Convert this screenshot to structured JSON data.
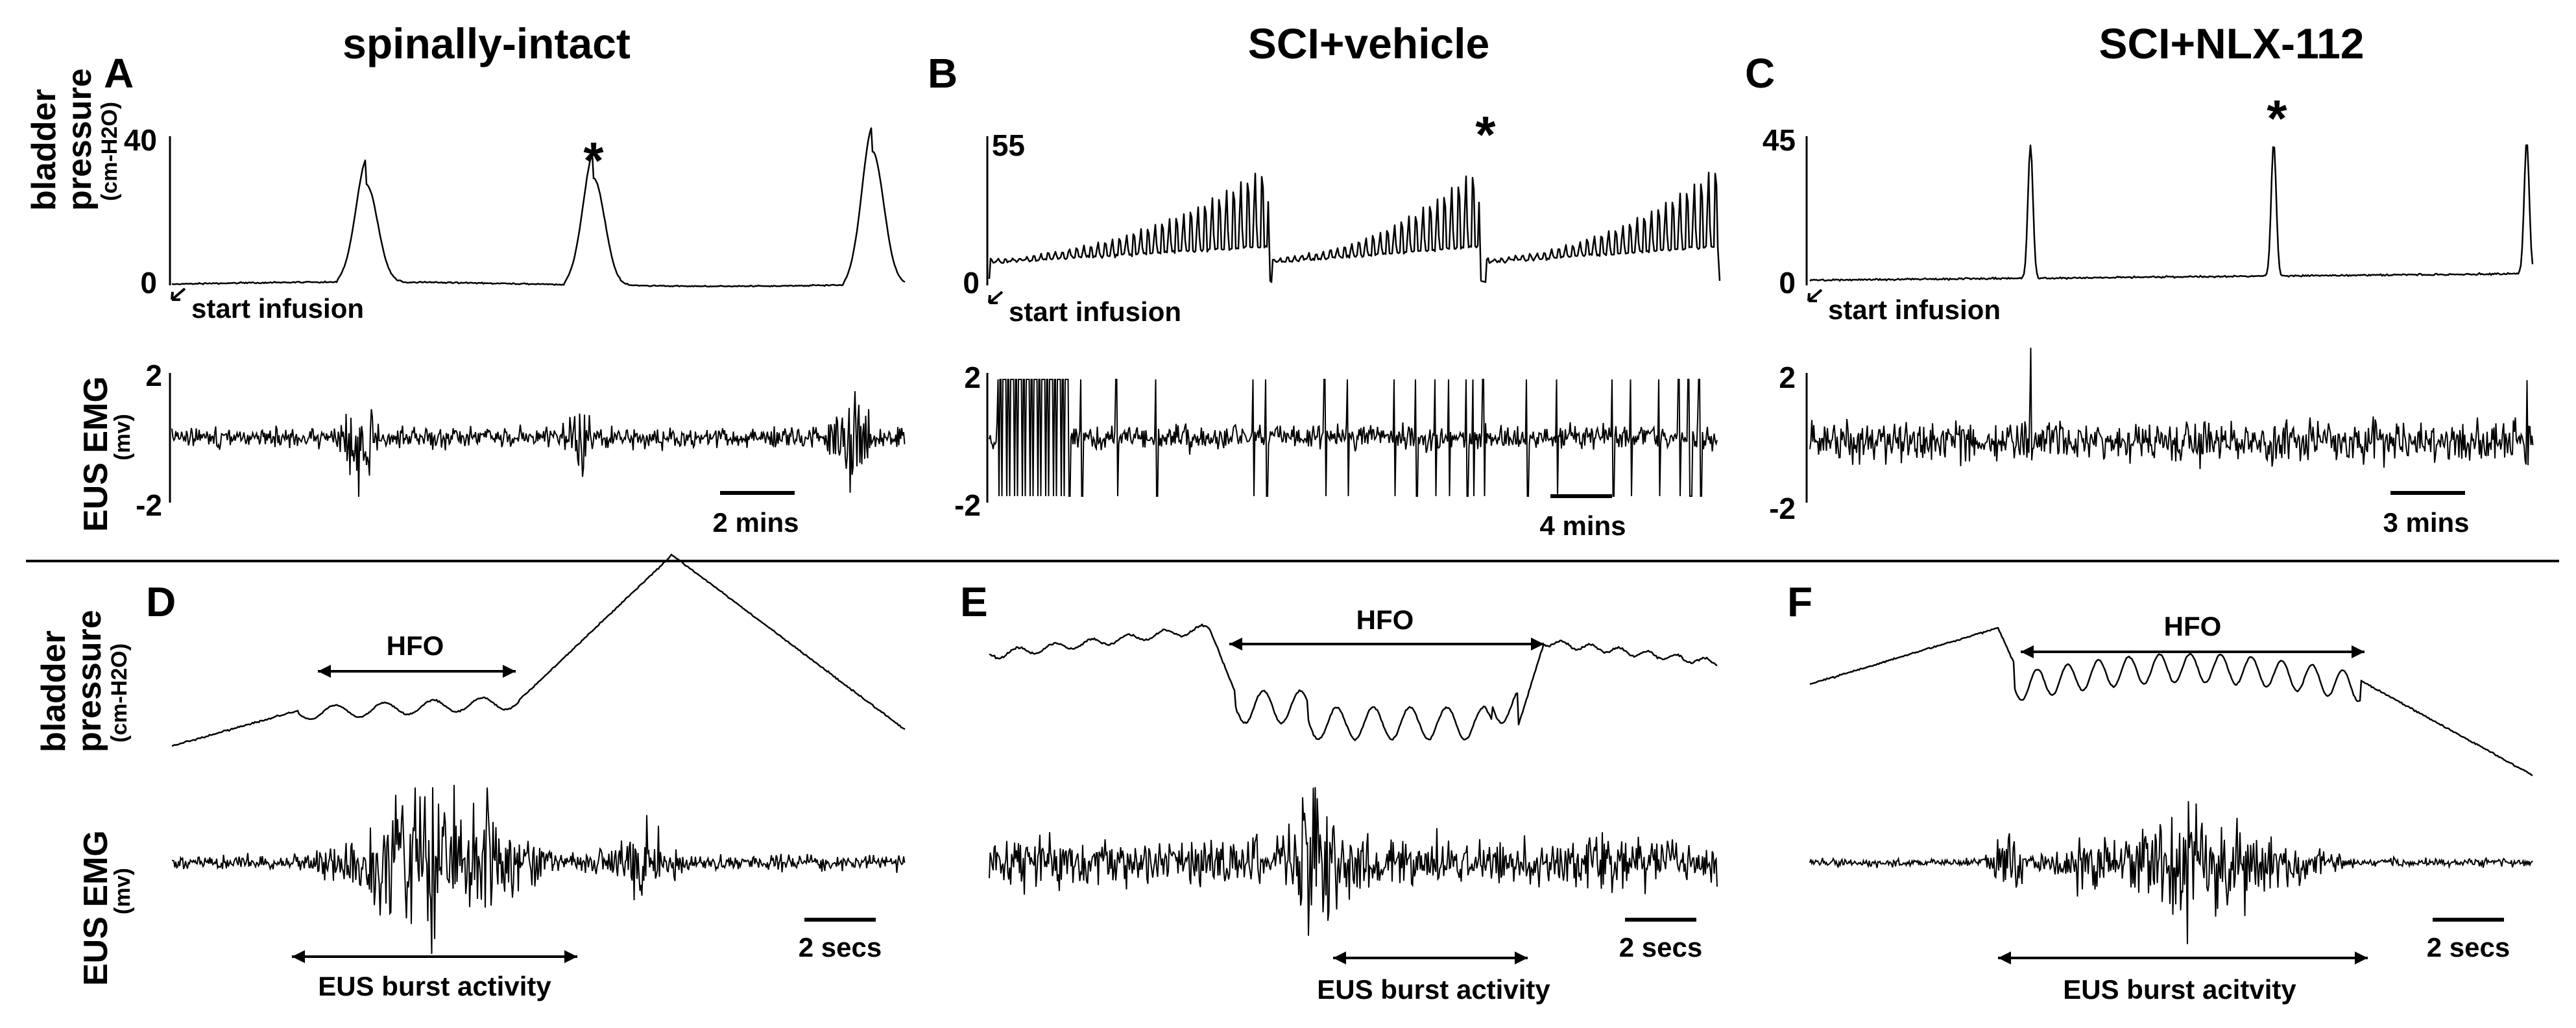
{
  "columns": [
    {
      "title": "spinally-intact"
    },
    {
      "title": "SCI+vehicle"
    },
    {
      "title": "SCI+NLX-112"
    }
  ],
  "panels": {
    "A": {
      "letter": "A",
      "pressure_max": "40",
      "pressure_min": "0",
      "emg_max": "2",
      "emg_min": "-2",
      "start_label": "start infusion",
      "scale_label": "2 mins",
      "star": "*"
    },
    "B": {
      "letter": "B",
      "pressure_max": "55",
      "pressure_min": "0",
      "emg_max": "2",
      "emg_min": "-2",
      "start_label": "start infusion",
      "scale_label": "4 mins",
      "star": "*"
    },
    "C": {
      "letter": "C",
      "pressure_max": "45",
      "pressure_min": "0",
      "emg_max": "2",
      "emg_min": "-2",
      "start_label": "start infusion",
      "scale_label": "3 mins",
      "star": "*"
    },
    "D": {
      "letter": "D",
      "hfo_label": "HFO",
      "burst_label": "EUS burst activity",
      "scale_label": "2 secs"
    },
    "E": {
      "letter": "E",
      "hfo_label": "HFO",
      "burst_label": "EUS burst activity",
      "scale_label": "2 secs"
    },
    "F": {
      "letter": "F",
      "hfo_label": "HFO",
      "burst_label": "EUS burst acitvity",
      "scale_label": "2 secs"
    }
  },
  "axis_labels": {
    "bladder_main": "bladder",
    "bladder_main2": "pressure",
    "bladder_unit": "(cm-H2O)",
    "emg_main": "EUS EMG",
    "emg_unit": "(mv)"
  }
}
